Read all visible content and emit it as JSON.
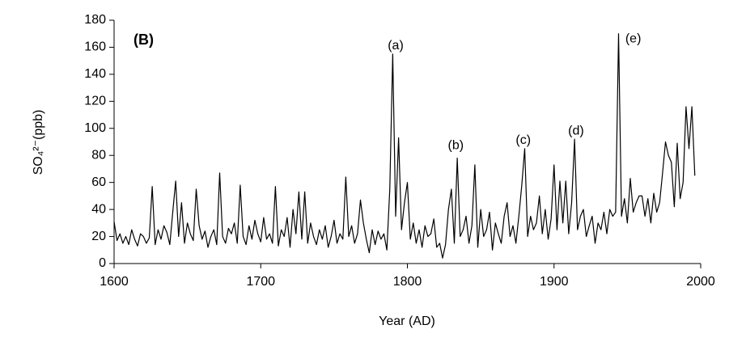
{
  "chart_data": {
    "type": "line",
    "panel_label": "(B)",
    "x_label": "Year (AD)",
    "y_label": "SO₄²⁻(ppb)",
    "color": "#000000",
    "xlim": [
      1600,
      2000
    ],
    "xticks": [
      1600,
      1700,
      1800,
      1900,
      2000
    ],
    "ylim": [
      0,
      180
    ],
    "yticks": [
      0,
      20,
      40,
      60,
      80,
      100,
      120,
      140,
      160,
      180
    ],
    "annotations": [
      {
        "text": "(a)",
        "x": 1792,
        "y": 161
      },
      {
        "text": "(b)",
        "x": 1833,
        "y": 87
      },
      {
        "text": "(c)",
        "x": 1879,
        "y": 91
      },
      {
        "text": "(d)",
        "x": 1915,
        "y": 98
      },
      {
        "text": "(e)",
        "x": 1954,
        "y": 166
      }
    ],
    "x": [
      1600,
      1602,
      1604,
      1606,
      1608,
      1610,
      1612,
      1614,
      1616,
      1618,
      1620,
      1622,
      1624,
      1626,
      1628,
      1630,
      1632,
      1634,
      1636,
      1638,
      1640,
      1642,
      1644,
      1646,
      1648,
      1650,
      1652,
      1654,
      1656,
      1658,
      1660,
      1662,
      1664,
      1666,
      1668,
      1670,
      1672,
      1674,
      1676,
      1678,
      1680,
      1682,
      1684,
      1686,
      1688,
      1690,
      1692,
      1694,
      1696,
      1698,
      1700,
      1702,
      1704,
      1706,
      1708,
      1710,
      1712,
      1714,
      1716,
      1718,
      1720,
      1722,
      1724,
      1726,
      1728,
      1730,
      1732,
      1734,
      1736,
      1738,
      1740,
      1742,
      1744,
      1746,
      1748,
      1750,
      1752,
      1754,
      1756,
      1758,
      1760,
      1762,
      1764,
      1766,
      1768,
      1770,
      1772,
      1774,
      1776,
      1778,
      1780,
      1782,
      1784,
      1786,
      1788,
      1790,
      1792,
      1794,
      1796,
      1798,
      1800,
      1802,
      1804,
      1806,
      1808,
      1810,
      1812,
      1814,
      1816,
      1818,
      1820,
      1822,
      1824,
      1826,
      1828,
      1830,
      1832,
      1834,
      1836,
      1838,
      1840,
      1842,
      1844,
      1846,
      1848,
      1850,
      1852,
      1854,
      1856,
      1858,
      1860,
      1862,
      1864,
      1866,
      1868,
      1870,
      1872,
      1874,
      1876,
      1878,
      1880,
      1882,
      1884,
      1886,
      1888,
      1890,
      1892,
      1894,
      1896,
      1898,
      1900,
      1902,
      1904,
      1906,
      1908,
      1910,
      1912,
      1914,
      1916,
      1918,
      1920,
      1922,
      1924,
      1926,
      1928,
      1930,
      1932,
      1934,
      1936,
      1938,
      1940,
      1942,
      1944,
      1946,
      1948,
      1950,
      1952,
      1954,
      1956,
      1958,
      1960,
      1962,
      1964,
      1966,
      1968,
      1970,
      1972,
      1974,
      1976,
      1978,
      1980,
      1982,
      1984,
      1986,
      1988,
      1990,
      1992,
      1994,
      1996
    ],
    "values": [
      31,
      17,
      22,
      15,
      20,
      14,
      25,
      18,
      13,
      22,
      20,
      15,
      19,
      57,
      14,
      25,
      18,
      28,
      23,
      14,
      38,
      61,
      20,
      45,
      15,
      30,
      22,
      17,
      55,
      28,
      18,
      24,
      12,
      20,
      25,
      14,
      67,
      20,
      15,
      26,
      22,
      30,
      15,
      58,
      20,
      14,
      28,
      18,
      32,
      22,
      16,
      34,
      18,
      22,
      15,
      57,
      13,
      25,
      20,
      34,
      12,
      40,
      22,
      53,
      18,
      53,
      15,
      30,
      20,
      14,
      25,
      18,
      28,
      12,
      20,
      32,
      15,
      22,
      18,
      64,
      20,
      28,
      15,
      22,
      47,
      30,
      18,
      8,
      25,
      14,
      24,
      18,
      22,
      10,
      55,
      155,
      35,
      93,
      25,
      45,
      60,
      18,
      30,
      15,
      25,
      12,
      28,
      20,
      22,
      33,
      12,
      15,
      4,
      14,
      40,
      55,
      15,
      78,
      20,
      25,
      35,
      15,
      28,
      73,
      12,
      40,
      20,
      25,
      38,
      10,
      30,
      22,
      15,
      35,
      45,
      20,
      28,
      15,
      35,
      58,
      85,
      20,
      35,
      25,
      30,
      50,
      22,
      40,
      18,
      33,
      73,
      25,
      61,
      30,
      61,
      22,
      45,
      92,
      25,
      35,
      40,
      20,
      28,
      35,
      15,
      30,
      25,
      38,
      22,
      40,
      35,
      38,
      170,
      35,
      48,
      30,
      63,
      38,
      45,
      50,
      50,
      35,
      48,
      30,
      52,
      38,
      45,
      67,
      90,
      80,
      75,
      42,
      89,
      48,
      60,
      116,
      85,
      116,
      65
    ]
  }
}
